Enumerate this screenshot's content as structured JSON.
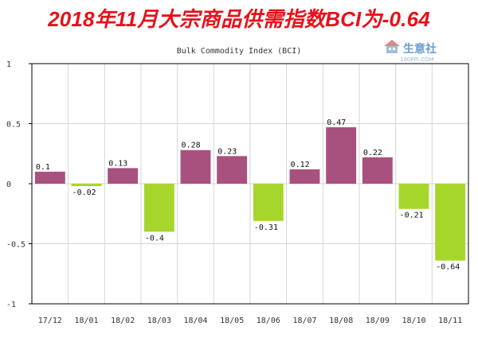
{
  "headline": "2018年11月大宗商品供需指数BCI为-0.64",
  "watermark": {
    "brand": "生意社",
    "site": "100PPI.COM"
  },
  "colors": {
    "positive": "#a8517f",
    "negative": "#a6d62c",
    "headline": "#e8101a",
    "grid": "#d6d6d6",
    "frame": "#000000"
  },
  "chart_data": {
    "type": "bar",
    "title": "Bulk Commodity Index (BCI)",
    "categories": [
      "17/12",
      "18/01",
      "18/02",
      "18/03",
      "18/04",
      "18/05",
      "18/06",
      "18/07",
      "18/08",
      "18/09",
      "18/10",
      "18/11"
    ],
    "values": [
      0.1,
      -0.02,
      0.13,
      -0.4,
      0.28,
      0.23,
      -0.31,
      0.12,
      0.47,
      0.22,
      -0.21,
      -0.64
    ],
    "value_labels": [
      "0.1",
      "-0.02",
      "0.13",
      "-0.4",
      "0.28",
      "0.23",
      "-0.31",
      "0.12",
      "0.47",
      "0.22",
      "-0.21",
      "-0.64"
    ],
    "y_ticks": [
      1,
      0.5,
      0,
      -0.5,
      -1
    ],
    "y_tick_labels": [
      "1",
      "0.5",
      "0",
      "-0.5",
      "-1"
    ],
    "ylim": [
      -1,
      1
    ],
    "grid": true,
    "legend": "none",
    "xlabel": "",
    "ylabel": ""
  }
}
